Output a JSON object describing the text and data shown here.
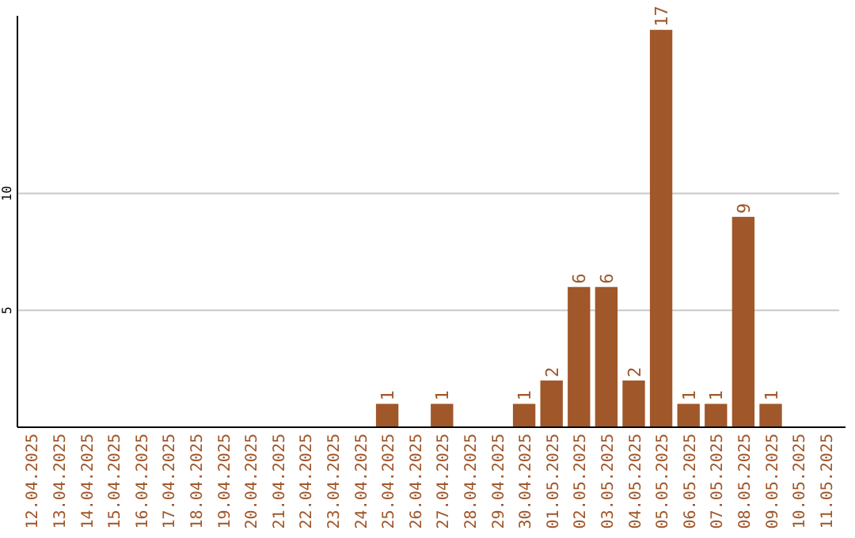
{
  "chart_data": {
    "type": "bar",
    "categories": [
      "12.04.2025",
      "13.04.2025",
      "14.04.2025",
      "15.04.2025",
      "16.04.2025",
      "17.04.2025",
      "18.04.2025",
      "19.04.2025",
      "20.04.2025",
      "21.04.2025",
      "22.04.2025",
      "23.04.2025",
      "24.04.2025",
      "25.04.2025",
      "26.04.2025",
      "27.04.2025",
      "28.04.2025",
      "29.04.2025",
      "30.04.2025",
      "01.05.2025",
      "02.05.2025",
      "03.05.2025",
      "04.05.2025",
      "05.05.2025",
      "06.05.2025",
      "07.05.2025",
      "08.05.2025",
      "09.05.2025",
      "10.05.2025",
      "11.05.2025"
    ],
    "values": [
      null,
      null,
      null,
      null,
      null,
      null,
      null,
      null,
      null,
      null,
      null,
      null,
      null,
      1,
      null,
      1,
      null,
      null,
      1,
      2,
      6,
      6,
      2,
      17,
      1,
      1,
      9,
      1,
      null,
      null
    ],
    "color": "#a0572a",
    "ylim": [
      0,
      17.6
    ],
    "yticks": [
      5,
      10
    ],
    "grid": "y",
    "data_labels": true
  }
}
